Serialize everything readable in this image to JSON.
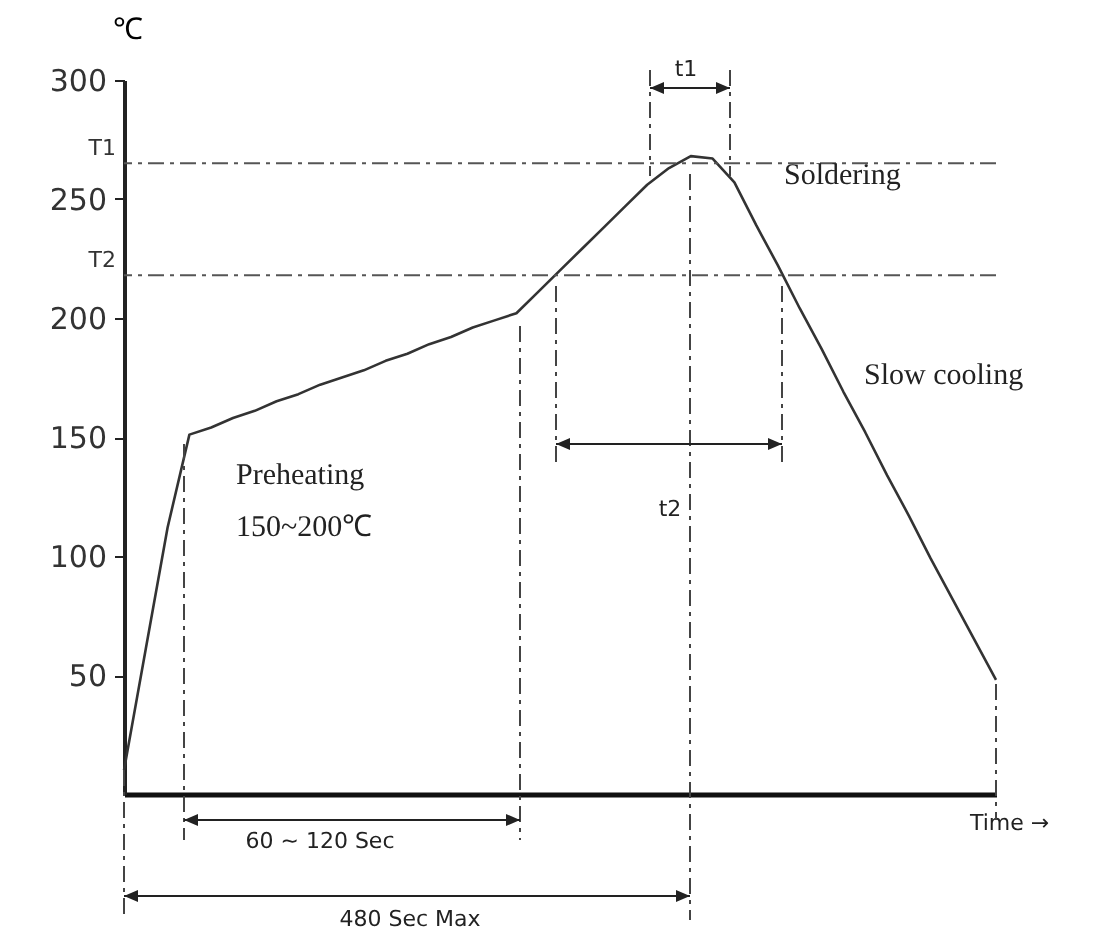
{
  "chart_data": {
    "type": "line",
    "ylabel": "℃",
    "categories": [
      null,
      null,
      null,
      null,
      null,
      null,
      null,
      null,
      null,
      null,
      null,
      null,
      null,
      null,
      null,
      null,
      null,
      null,
      null,
      null,
      null,
      null,
      null,
      null,
      null,
      null,
      null,
      null,
      null,
      null,
      null,
      null,
      null,
      null,
      null,
      null,
      null,
      null,
      null,
      null,
      null
    ],
    "series": [
      {
        "color": "#333333",
        "values": [
          10,
          61,
          112,
          151,
          154,
          158,
          161,
          165,
          168,
          172,
          175,
          178,
          182,
          185,
          189,
          192,
          196,
          199,
          202,
          211,
          220,
          229,
          238,
          247,
          256,
          263,
          268,
          267,
          257,
          239,
          222,
          204,
          187,
          169,
          152,
          134,
          117,
          99,
          82,
          65,
          48
        ]
      }
    ],
    "ylim": [
      0,
      300
    ],
    "yticks": [
      50,
      100,
      150,
      200,
      250,
      300
    ],
    "grid": false,
    "marker": "none",
    "line_style": "solid",
    "tick_labels": "y",
    "ref_lines": [
      {
        "axis": "y",
        "value": 265,
        "label": "T1",
        "line_style": "dashed"
      },
      {
        "axis": "y",
        "value": 218,
        "label": "T2",
        "line_style": "dashed"
      }
    ],
    "annotations": [
      "Soldering",
      "Slow cooling",
      "Preheating",
      "150~200℃",
      "t1",
      "t2",
      "60 ~ 120 Sec",
      "480 Sec Max",
      "Time →"
    ]
  }
}
